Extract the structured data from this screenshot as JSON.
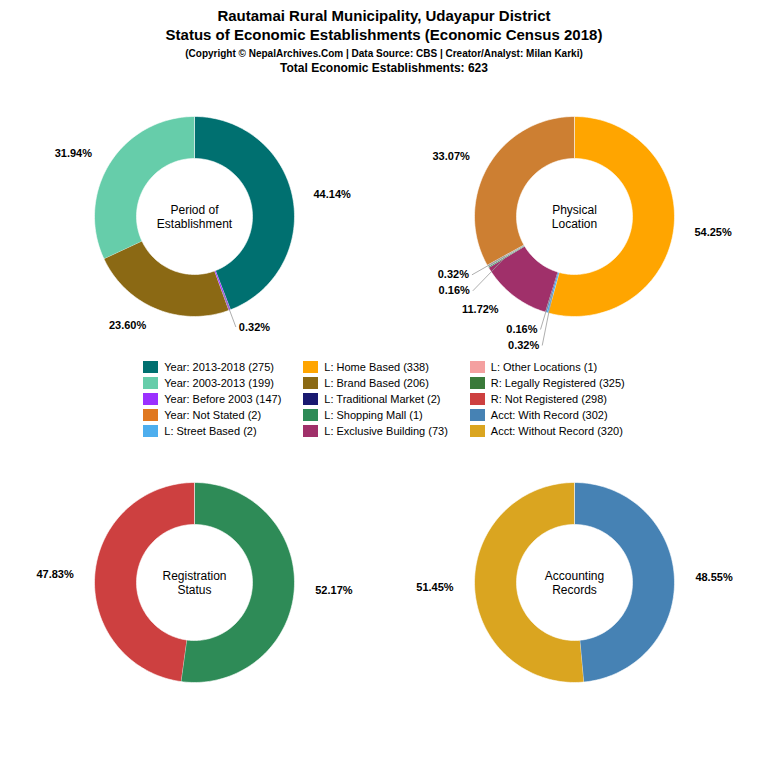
{
  "title": "Rautamai Rural Municipality, Udayapur District\nStatus of Economic Establishments (Economic Census 2018)",
  "subtitle": [
    "(Copyright © NepalArchives.Com | Data Source: CBS | Creator/Analyst: Milan Karki)",
    "Total Economic Establishments: 623"
  ],
  "chart_data": [
    {
      "type": "pie",
      "title": "Period of\nEstablishment",
      "values": [
        44.14,
        0.32,
        23.6,
        31.94
      ],
      "value_labels": [
        "44.14%",
        "0.32%",
        "23.60%",
        "31.94%"
      ],
      "colors": [
        "#007070",
        "#9B30FF",
        "#8B6914",
        "#66CDAA"
      ],
      "data_labels": true
    },
    {
      "type": "pie",
      "title": "Physical\nLocation",
      "values": [
        54.25,
        0.32,
        0.16,
        11.72,
        0.16,
        0.32,
        33.07
      ],
      "value_labels": [
        "54.25%",
        "0.32%",
        "0.16%",
        "11.72%",
        "0.16%",
        "0.32%",
        "33.07%"
      ],
      "colors": [
        "#FFA500",
        "#4DAEEE",
        "#191970",
        "#A0306A",
        "#2E8B57",
        "#B0B0B0",
        "#CD7F32"
      ],
      "data_labels": true
    },
    {
      "type": "pie",
      "title": "Registration\nStatus",
      "values": [
        52.17,
        47.83
      ],
      "value_labels": [
        "52.17%",
        "47.83%"
      ],
      "colors": [
        "#2E8B57",
        "#CD4040"
      ],
      "data_labels": true
    },
    {
      "type": "pie",
      "title": "Accounting\nRecords",
      "values": [
        48.55,
        51.45
      ],
      "value_labels": [
        "48.55%",
        "51.45%"
      ],
      "colors": [
        "#4682B4",
        "#DAA520"
      ],
      "data_labels": true
    },
    {
      "type": "legend",
      "series": [
        {
          "name": "Year: 2013-2018 (275)",
          "color": "#007070"
        },
        {
          "name": "Year: 2003-2013 (199)",
          "color": "#66CDAA"
        },
        {
          "name": "Year: Before 2003 (147)",
          "color": "#9B30FF"
        },
        {
          "name": "Year: Not Stated (2)",
          "color": "#E07820"
        },
        {
          "name": "L: Street Based (2)",
          "color": "#4DAEEE"
        },
        {
          "name": "L: Home Based (338)",
          "color": "#FFA500"
        },
        {
          "name": "L: Brand Based (206)",
          "color": "#8B6914"
        },
        {
          "name": "L: Traditional Market (2)",
          "color": "#191970"
        },
        {
          "name": "L: Shopping Mall (1)",
          "color": "#2E8B57"
        },
        {
          "name": "L: Exclusive Building (73)",
          "color": "#A0306A"
        },
        {
          "name": "L: Other Locations (1)",
          "color": "#F4A0A0"
        },
        {
          "name": "R: Legally Registered (325)",
          "color": "#3A7A3A"
        },
        {
          "name": "R: Not Registered (298)",
          "color": "#CD4040"
        },
        {
          "name": "Acct: With Record (302)",
          "color": "#4682B4"
        },
        {
          "name": "Acct: Without Record (320)",
          "color": "#DAA520"
        }
      ]
    }
  ]
}
